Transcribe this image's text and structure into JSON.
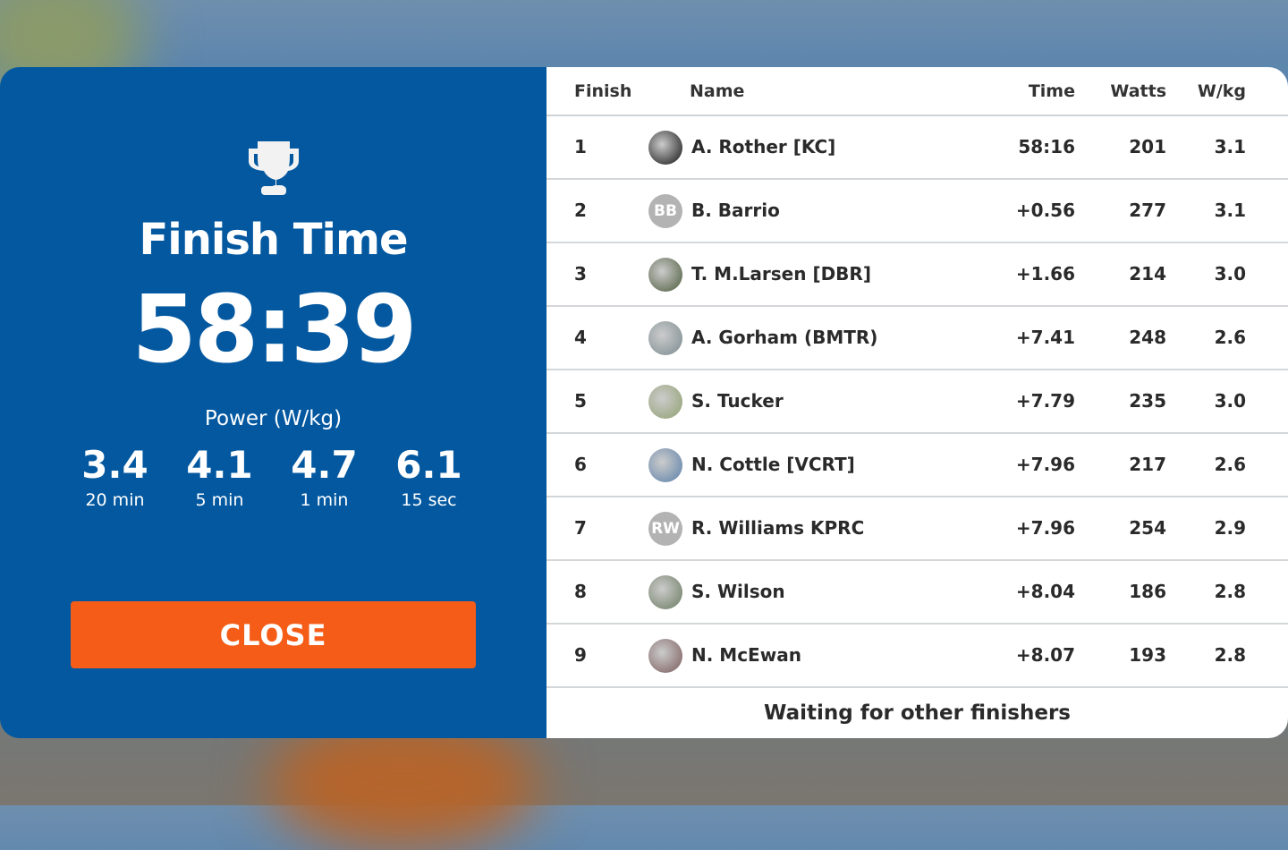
{
  "summary": {
    "title": "Finish Time",
    "time": "58:39",
    "power_title": "Power (W/kg)",
    "power": [
      {
        "value": "3.4",
        "label": "20 min"
      },
      {
        "value": "4.1",
        "label": "5 min"
      },
      {
        "value": "4.7",
        "label": "1 min"
      },
      {
        "value": "6.1",
        "label": "15 sec"
      }
    ],
    "close_label": "CLOSE"
  },
  "table": {
    "headers": {
      "finish": "Finish",
      "name": "Name",
      "time": "Time",
      "watts": "Watts",
      "wkg": "W/kg"
    },
    "rows": [
      {
        "finish": "1",
        "name": "A. Rother [KC]",
        "time": "58:16",
        "watts": "201",
        "wkg": "3.1",
        "avatar": "photo",
        "color": "#111111"
      },
      {
        "finish": "2",
        "name": "B. Barrio",
        "time": "+0.56",
        "watts": "277",
        "wkg": "3.1",
        "avatar": "BB",
        "color": "#b3b3b3"
      },
      {
        "finish": "3",
        "name": "T. M.Larsen [DBR]",
        "time": "+1.66",
        "watts": "214",
        "wkg": "3.0",
        "avatar": "photo",
        "color": "#4a5a3a"
      },
      {
        "finish": "4",
        "name": "A. Gorham (BMTR)",
        "time": "+7.41",
        "watts": "248",
        "wkg": "2.6",
        "avatar": "photo",
        "color": "#7a8a8f"
      },
      {
        "finish": "5",
        "name": "S. Tucker",
        "time": "+7.79",
        "watts": "235",
        "wkg": "3.0",
        "avatar": "photo",
        "color": "#8fa070"
      },
      {
        "finish": "6",
        "name": "N. Cottle [VCRT]",
        "time": "+7.96",
        "watts": "217",
        "wkg": "2.6",
        "avatar": "photo",
        "color": "#5a7fa8"
      },
      {
        "finish": "7",
        "name": "R. Williams KPRC",
        "time": "+7.96",
        "watts": "254",
        "wkg": "2.9",
        "avatar": "RW",
        "color": "#b3b3b3"
      },
      {
        "finish": "8",
        "name": "S. Wilson",
        "time": "+8.04",
        "watts": "186",
        "wkg": "2.8",
        "avatar": "photo",
        "color": "#6a7a60"
      },
      {
        "finish": "9",
        "name": "N. McEwan",
        "time": "+8.07",
        "watts": "193",
        "wkg": "2.8",
        "avatar": "photo",
        "color": "#7a5a5a"
      }
    ],
    "footer": "Waiting for other finishers"
  },
  "colors": {
    "panel": "#0358a0",
    "close": "#f55c17"
  }
}
